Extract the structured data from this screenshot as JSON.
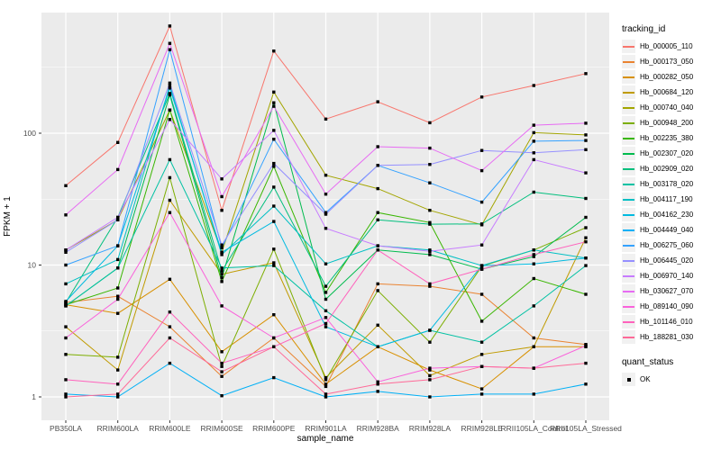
{
  "chart_data": {
    "type": "line",
    "title": "",
    "xlabel": "sample_name",
    "ylabel": "FPKM + 1",
    "y_scale": "log10",
    "y_ticks": [
      1,
      10,
      100
    ],
    "y_minor": [
      3.162,
      31.62,
      316.2
    ],
    "ylim": [
      0.67,
      820
    ],
    "grid": true,
    "panel_bg": "#EBEBEB",
    "grid_color": "#FFFFFF",
    "axis_text_color": "#4D4D4D",
    "marker": {
      "shape": "square",
      "color": "#000000"
    },
    "categories": [
      "PB350LA",
      "RRIM600LA",
      "RRIM600LE",
      "RRIM600SE",
      "RRIM600PE",
      "RRIM901LA",
      "RRIM928BA",
      "RRIM928LA",
      "RRIM928LE",
      "RRII105LA_Control",
      "RRII105LA_Stressed"
    ],
    "series": [
      {
        "name": "Hb_000005_110",
        "color": "#F8766D",
        "values": [
          40,
          85,
          650,
          26,
          420,
          128,
          173,
          120,
          188,
          230,
          283
        ]
      },
      {
        "name": "Hb_000173_050",
        "color": "#EA8331",
        "values": [
          5.2,
          5.8,
          3.4,
          1.43,
          2.8,
          1.2,
          7.2,
          6.9,
          6.0,
          2.8,
          2.5
        ]
      },
      {
        "name": "Hb_000282_050",
        "color": "#D89000",
        "values": [
          5.0,
          4.3,
          7.8,
          2.2,
          4.2,
          1.25,
          2.4,
          1.6,
          1.15,
          2.4,
          2.4
        ]
      },
      {
        "name": "Hb_000684_120",
        "color": "#C09B00",
        "values": [
          3.4,
          1.6,
          31,
          8.5,
          10.4,
          1.4,
          3.5,
          1.45,
          2.1,
          2.4,
          16.1
        ]
      },
      {
        "name": "Hb_000740_040",
        "color": "#A3A500",
        "values": [
          13,
          22,
          150,
          12.5,
          205,
          48,
          38,
          26,
          20.2,
          101,
          97
        ]
      },
      {
        "name": "Hb_000948_200",
        "color": "#7CAE00",
        "values": [
          2.1,
          2.0,
          46,
          1.7,
          13.2,
          1.35,
          6.4,
          2.6,
          9.8,
          13,
          19.2
        ]
      },
      {
        "name": "Hb_002235_380",
        "color": "#39B600",
        "values": [
          5.0,
          6.7,
          150,
          7.5,
          56,
          6.2,
          25,
          21,
          3.75,
          7.9,
          6.0
        ]
      },
      {
        "name": "Hb_002307_020",
        "color": "#00BB4E",
        "values": [
          4.9,
          9.5,
          195,
          8.0,
          170,
          5.5,
          13,
          12,
          9.3,
          11.6,
          23
        ]
      },
      {
        "name": "Hb_002909_020",
        "color": "#00BF7D",
        "values": [
          5.2,
          23,
          200,
          9.0,
          39,
          6.9,
          22,
          20.4,
          20.5,
          35.7,
          32
        ]
      },
      {
        "name": "Hb_003178_020",
        "color": "#00C1A3",
        "values": [
          4.9,
          9.5,
          63,
          9.5,
          9.9,
          4.5,
          2.4,
          3.2,
          2.6,
          4.9,
          9.9
        ]
      },
      {
        "name": "Hb_004117_190",
        "color": "#00BFC4",
        "values": [
          7.2,
          11,
          230,
          12,
          28,
          10.2,
          14,
          13,
          9.9,
          13,
          11.3
        ]
      },
      {
        "name": "Hb_004162_230",
        "color": "#00BAE0",
        "values": [
          5.3,
          14,
          220,
          12.5,
          21.4,
          3.4,
          2.4,
          3.2,
          9.9,
          10.2,
          11.3
        ]
      },
      {
        "name": "Hb_004449_040",
        "color": "#00B0F6",
        "values": [
          1.05,
          1.0,
          1.8,
          1.02,
          1.4,
          1.0,
          1.1,
          1.0,
          1.05,
          1.05,
          1.25
        ]
      },
      {
        "name": "Hb_006275_060",
        "color": "#35A2FF",
        "values": [
          10,
          14,
          430,
          13.5,
          90,
          25,
          57,
          42,
          30,
          87,
          88
        ]
      },
      {
        "name": "Hb_006445_020",
        "color": "#9590FF",
        "values": [
          12.5,
          22,
          240,
          14.2,
          59,
          24.3,
          57,
          58,
          74,
          71,
          75
        ]
      },
      {
        "name": "Hb_006970_140",
        "color": "#C77CFF",
        "values": [
          13,
          23,
          127,
          45,
          105,
          19,
          14,
          12.7,
          14.2,
          63,
          50
        ]
      },
      {
        "name": "Hb_030627_070",
        "color": "#E76BF3",
        "values": [
          24,
          53,
          480,
          33,
          160,
          34.5,
          79,
          77,
          52,
          115,
          119
        ]
      },
      {
        "name": "Hb_089140_090",
        "color": "#FA62DB",
        "values": [
          2.8,
          5.5,
          25,
          4.9,
          2.8,
          4.0,
          1.3,
          1.65,
          1.7,
          1.65,
          2.45
        ]
      },
      {
        "name": "Hb_101146_010",
        "color": "#FF62BC",
        "values": [
          1.35,
          1.25,
          4.4,
          1.8,
          2.4,
          3.6,
          13,
          7.2,
          9.3,
          12,
          15
        ]
      },
      {
        "name": "Hb_188281_030",
        "color": "#FF6A98",
        "values": [
          1.0,
          1.05,
          2.8,
          1.55,
          2.4,
          1.05,
          1.25,
          1.35,
          1.7,
          1.65,
          1.8
        ]
      }
    ]
  },
  "legend": {
    "tracking_title": "tracking_id",
    "quant_title": "quant_status",
    "quant_items": [
      {
        "label": "OK"
      }
    ]
  }
}
